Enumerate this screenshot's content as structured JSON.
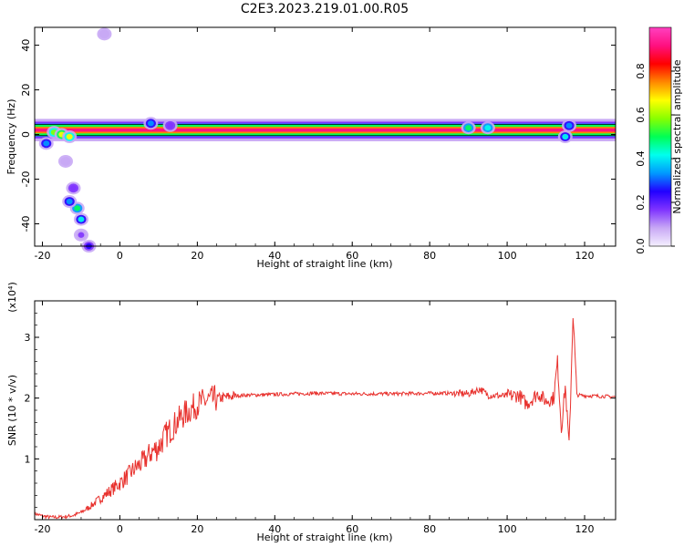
{
  "chart_data": [
    {
      "type": "heatmap",
      "title": "C2E3.2023.219.01.00.R05",
      "xlabel": "Height of straight line (km)",
      "ylabel": "Frequency (Hz)",
      "xlim": [
        -22,
        128
      ],
      "ylim": [
        -50,
        48
      ],
      "xticks": [
        -20,
        0,
        20,
        40,
        60,
        80,
        100,
        120
      ],
      "yticks": [
        -40,
        -20,
        0,
        20,
        40
      ],
      "colorbar": {
        "label": "Normalized spectral amplitude",
        "range": [
          0,
          1
        ],
        "ticks": [
          0.0,
          0.2,
          0.4,
          0.6,
          0.8
        ],
        "colormap": [
          "#f5f0ff",
          "#c8a8f5",
          "#7f33ff",
          "#2200ff",
          "#0099ff",
          "#00ffee",
          "#00ff55",
          "#88ff00",
          "#ffff00",
          "#ff8800",
          "#ff0000",
          "#ff1080",
          "#ff40c0"
        ]
      },
      "band": {
        "center_hz": 2,
        "halfwidth_hz": 2.5
      },
      "features": [
        {
          "x": -19,
          "y": -4,
          "amp": 0.3
        },
        {
          "x": -17,
          "y": 1,
          "amp": 0.6
        },
        {
          "x": -15,
          "y": 0,
          "amp": 0.7
        },
        {
          "x": -13,
          "y": -1,
          "amp": 0.65
        },
        {
          "x": -11,
          "y": -33,
          "amp": 0.5
        },
        {
          "x": -13,
          "y": -30,
          "amp": 0.35
        },
        {
          "x": -10,
          "y": -38,
          "amp": 0.4
        },
        {
          "x": -12,
          "y": -24,
          "amp": 0.2
        },
        {
          "x": -14,
          "y": -12,
          "amp": 0.12
        },
        {
          "x": -10,
          "y": -45,
          "amp": 0.15
        },
        {
          "x": -8,
          "y": -50,
          "amp": 0.25
        },
        {
          "x": -4,
          "y": 45,
          "amp": 0.08
        },
        {
          "x": 8,
          "y": 5,
          "amp": 0.3
        },
        {
          "x": 13,
          "y": 4,
          "amp": 0.2
        },
        {
          "x": 90,
          "y": 3,
          "amp": 0.5
        },
        {
          "x": 95,
          "y": 3,
          "amp": 0.45
        },
        {
          "x": 115,
          "y": -1,
          "amp": 0.4
        },
        {
          "x": 116,
          "y": 4,
          "amp": 0.3
        }
      ]
    },
    {
      "type": "line",
      "xlabel": "Height of straight line (km)",
      "ylabel": "SNR (10 * v/v)",
      "yunit": "(x10⁴)",
      "xlim": [
        -22,
        128
      ],
      "ylim": [
        0,
        3.6
      ],
      "xticks": [
        -20,
        0,
        20,
        40,
        60,
        80,
        100,
        120
      ],
      "yticks": [
        1,
        2,
        3
      ],
      "color": "#e8322e",
      "x": [
        -22,
        -20,
        -18,
        -16,
        -14,
        -12,
        -10,
        -8,
        -6,
        -4,
        -2,
        0,
        2,
        4,
        6,
        8,
        10,
        12,
        14,
        16,
        18,
        20,
        22,
        24,
        26,
        28,
        30,
        34,
        40,
        50,
        60,
        70,
        80,
        85,
        90,
        93,
        95,
        100,
        103,
        105,
        108,
        110,
        112,
        113,
        114,
        115,
        116,
        117,
        118,
        120,
        125,
        128
      ],
      "y": [
        0.1,
        0.06,
        0.04,
        0.04,
        0.05,
        0.07,
        0.12,
        0.2,
        0.3,
        0.4,
        0.5,
        0.6,
        0.72,
        0.85,
        0.95,
        1.1,
        1.2,
        1.4,
        1.55,
        1.7,
        1.8,
        1.9,
        1.95,
        1.98,
        2.0,
        2.02,
        2.04,
        2.05,
        2.06,
        2.08,
        2.07,
        2.07,
        2.08,
        2.08,
        2.07,
        2.15,
        2.05,
        2.03,
        2.05,
        1.9,
        2.08,
        1.95,
        2.0,
        2.6,
        1.5,
        2.2,
        1.2,
        3.4,
        2.05,
        2.04,
        2.03,
        2.02
      ]
    }
  ]
}
